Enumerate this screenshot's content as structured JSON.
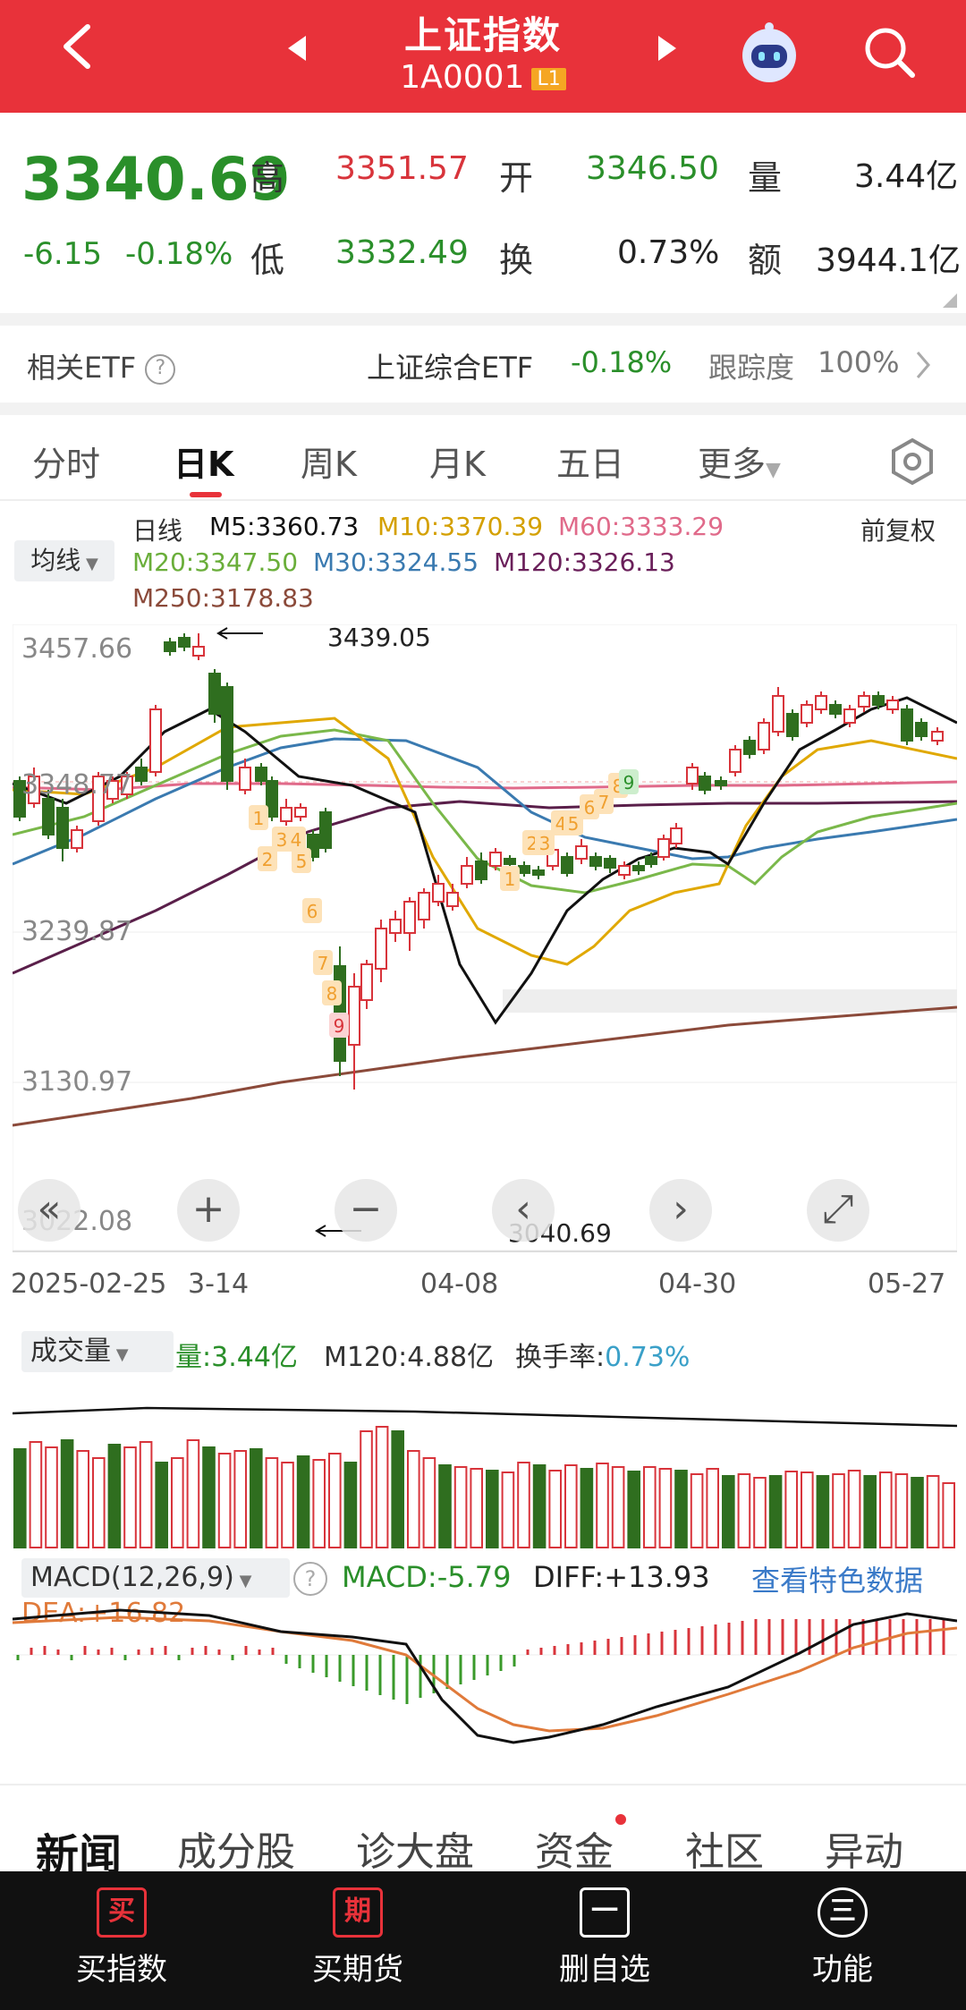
{
  "header": {
    "title": "上证指数",
    "code": "1A0001",
    "level": "L1"
  },
  "quote": {
    "price": "3340.69",
    "change": "-6.15",
    "change_pct": "-0.18%",
    "high_label": "高",
    "high": "3351.57",
    "low_label": "低",
    "low": "3332.49",
    "open_label": "开",
    "open": "3346.50",
    "turnover_label": "换",
    "turnover": "0.73%",
    "volume_label": "量",
    "volume": "3.44亿",
    "amount_label": "额",
    "amount": "3944.1亿"
  },
  "etf": {
    "label": "相关ETF",
    "name": "上证综合ETF",
    "change": "-0.18%",
    "tracking_label": "跟踪度",
    "tracking": "100%"
  },
  "period_tabs": [
    "分时",
    "日K",
    "周K",
    "月K",
    "五日",
    "更多"
  ],
  "active_tab": "日K",
  "ma_legend": {
    "kind": "日线",
    "adjust": "前复权",
    "selector": "均线",
    "m5": "M5:3360.73",
    "m10": "M10:3370.39",
    "m60": "M60:3333.29",
    "m20": "M20:3347.50",
    "m30": "M30:3324.55",
    "m120": "M120:3326.13",
    "m250": "M250:3178.83"
  },
  "colors": {
    "m5": "#111111",
    "m10": "#e0a800",
    "m60": "#e06a8a",
    "m20": "#7ab84a",
    "m30": "#3a7ab0",
    "m120": "#6a1f5a",
    "m250": "#8b4a3a",
    "up": "#d8343b",
    "down": "#2f6e1f",
    "accent": "#e8323a"
  },
  "chart": {
    "y_ticks": [
      "3457.66",
      "3348.77",
      "3239.87",
      "3130.97",
      "3022.08"
    ],
    "high_annotation": "3439.05",
    "low_annotation": "3040.69",
    "x_ticks": [
      "2025-02-25",
      "3-14",
      "04-08",
      "04-30",
      "05-27"
    ],
    "td_buy": [
      "1",
      "2",
      "3",
      "4",
      "5",
      "6",
      "7",
      "8",
      "9"
    ],
    "td_sell_top": [
      "1",
      "2",
      "3",
      "4",
      "5",
      "6",
      "7",
      "8",
      "9"
    ]
  },
  "volume": {
    "selector": "成交量",
    "vol": "量:3.44亿",
    "m120": "M120:4.88亿",
    "turnover_label": "换手率:",
    "turnover": "0.73%"
  },
  "macd": {
    "selector": "MACD(12,26,9)",
    "macd": "MACD:-5.79",
    "diff": "DIFF:+13.93",
    "link": "查看特色数据",
    "dea": "DEA:+16.82"
  },
  "news_tabs": [
    "新闻",
    "成分股",
    "诊大盘",
    "资金",
    "社区",
    "异动"
  ],
  "bottom": [
    {
      "icon": "买",
      "label": "买指数"
    },
    {
      "icon": "期",
      "label": "买期货"
    },
    {
      "icon": "一",
      "label": "删自选"
    },
    {
      "icon": "三",
      "label": "功能"
    }
  ]
}
